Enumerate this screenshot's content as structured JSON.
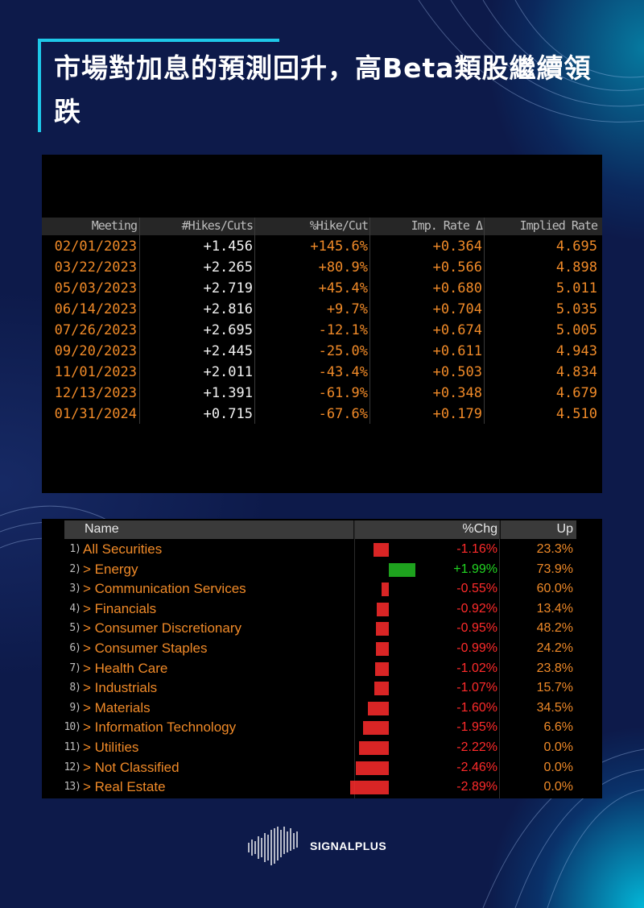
{
  "title": "市場對加息的預測回升，高Beta類股繼續領跌",
  "colors": {
    "accent": "#1ec8e8",
    "orange": "#f08a28",
    "negative": "#ff2b2b",
    "positive": "#22d622",
    "background": "#0d1a4a"
  },
  "rates_table": {
    "headers": [
      "Meeting",
      "#Hikes/Cuts",
      "%Hike/Cut",
      "Imp. Rate Δ",
      "Implied Rate"
    ],
    "rows": [
      {
        "meeting": "02/01/2023",
        "hikes": "+1.456",
        "pct": "+145.6%",
        "rate_delta": "+0.364",
        "implied": "4.695"
      },
      {
        "meeting": "03/22/2023",
        "hikes": "+2.265",
        "pct": "+80.9%",
        "rate_delta": "+0.566",
        "implied": "4.898"
      },
      {
        "meeting": "05/03/2023",
        "hikes": "+2.719",
        "pct": "+45.4%",
        "rate_delta": "+0.680",
        "implied": "5.011"
      },
      {
        "meeting": "06/14/2023",
        "hikes": "+2.816",
        "pct": "+9.7%",
        "rate_delta": "+0.704",
        "implied": "5.035"
      },
      {
        "meeting": "07/26/2023",
        "hikes": "+2.695",
        "pct": "-12.1%",
        "rate_delta": "+0.674",
        "implied": "5.005"
      },
      {
        "meeting": "09/20/2023",
        "hikes": "+2.445",
        "pct": "-25.0%",
        "rate_delta": "+0.611",
        "implied": "4.943"
      },
      {
        "meeting": "11/01/2023",
        "hikes": "+2.011",
        "pct": "-43.4%",
        "rate_delta": "+0.503",
        "implied": "4.834"
      },
      {
        "meeting": "12/13/2023",
        "hikes": "+1.391",
        "pct": "-61.9%",
        "rate_delta": "+0.348",
        "implied": "4.679"
      },
      {
        "meeting": "01/31/2024",
        "hikes": "+0.715",
        "pct": "-67.6%",
        "rate_delta": "+0.179",
        "implied": "4.510"
      }
    ]
  },
  "sector_table": {
    "headers": [
      "Name",
      "%Chg",
      "Up"
    ],
    "rows": [
      {
        "num": "1)",
        "name": "All Securities",
        "chg": "-1.16%",
        "chg_value": -1.16,
        "up": "23.3%"
      },
      {
        "num": "2)",
        "name": "> Energy",
        "chg": "+1.99%",
        "chg_value": 1.99,
        "up": "73.9%"
      },
      {
        "num": "3)",
        "name": "> Communication Services",
        "chg": "-0.55%",
        "chg_value": -0.55,
        "up": "60.0%"
      },
      {
        "num": "4)",
        "name": "> Financials",
        "chg": "-0.92%",
        "chg_value": -0.92,
        "up": "13.4%"
      },
      {
        "num": "5)",
        "name": "> Consumer Discretionary",
        "chg": "-0.95%",
        "chg_value": -0.95,
        "up": "48.2%"
      },
      {
        "num": "6)",
        "name": "> Consumer Staples",
        "chg": "-0.99%",
        "chg_value": -0.99,
        "up": "24.2%"
      },
      {
        "num": "7)",
        "name": "> Health Care",
        "chg": "-1.02%",
        "chg_value": -1.02,
        "up": "23.8%"
      },
      {
        "num": "8)",
        "name": "> Industrials",
        "chg": "-1.07%",
        "chg_value": -1.07,
        "up": "15.7%"
      },
      {
        "num": "9)",
        "name": "> Materials",
        "chg": "-1.60%",
        "chg_value": -1.6,
        "up": "34.5%"
      },
      {
        "num": "10)",
        "name": "> Information Technology",
        "chg": "-1.95%",
        "chg_value": -1.95,
        "up": "6.6%"
      },
      {
        "num": "11)",
        "name": "> Utilities",
        "chg": "-2.22%",
        "chg_value": -2.22,
        "up": "0.0%"
      },
      {
        "num": "12)",
        "name": "> Not Classified",
        "chg": "-2.46%",
        "chg_value": -2.46,
        "up": "0.0%"
      },
      {
        "num": "13)",
        "name": "> Real Estate",
        "chg": "-2.89%",
        "chg_value": -2.89,
        "up": "0.0%"
      }
    ]
  },
  "logo": {
    "text": "SIGNALPLUS",
    "icon": "waveform-icon"
  }
}
